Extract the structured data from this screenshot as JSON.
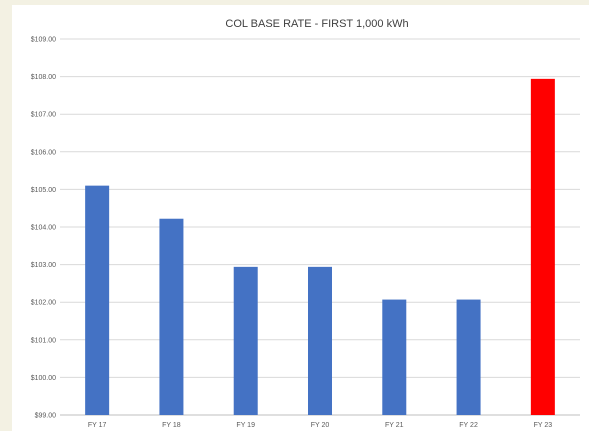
{
  "chart_data": {
    "type": "bar",
    "title": "COL BASE RATE - FIRST 1,000 kWh",
    "xlabel": "",
    "ylabel": "",
    "categories": [
      "FY 17",
      "FY 18",
      "FY 19",
      "FY 20",
      "FY 21",
      "FY 22",
      "FY 23"
    ],
    "values": [
      105.1,
      104.22,
      102.94,
      102.94,
      102.07,
      102.07,
      107.94
    ],
    "bar_colors": [
      "#4472c4",
      "#4472c4",
      "#4472c4",
      "#4472c4",
      "#4472c4",
      "#4472c4",
      "#ff0000"
    ],
    "ylim": [
      99,
      109
    ],
    "y_ticks": [
      99,
      100,
      101,
      102,
      103,
      104,
      105,
      106,
      107,
      108,
      109
    ],
    "y_tick_labels": [
      "$99.00",
      "$100.00",
      "$101.00",
      "$102.00",
      "$103.00",
      "$104.00",
      "$105.00",
      "$106.00",
      "$107.00",
      "$108.00",
      "$109.00"
    ],
    "grid": true,
    "legend": "none"
  }
}
